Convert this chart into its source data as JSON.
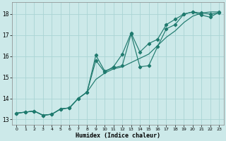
{
  "xlabel": "Humidex (Indice chaleur)",
  "bg_color": "#cce9e9",
  "grid_color": "#aad4d4",
  "line_color": "#1f7a6e",
  "xlim": [
    -0.5,
    23.5
  ],
  "ylim": [
    12.75,
    18.55
  ],
  "yticks": [
    13,
    14,
    15,
    16,
    17,
    18
  ],
  "xticks": [
    0,
    1,
    2,
    3,
    4,
    5,
    6,
    7,
    8,
    9,
    10,
    11,
    12,
    13,
    14,
    15,
    16,
    17,
    18,
    19,
    20,
    21,
    22,
    23
  ],
  "line1_x": [
    0,
    1,
    2,
    3,
    4,
    5,
    6,
    7,
    8,
    9,
    10,
    11,
    12,
    13,
    14,
    15,
    16,
    17,
    18,
    19,
    20,
    21,
    22,
    23
  ],
  "line1_y": [
    13.3,
    13.35,
    13.4,
    13.2,
    13.25,
    13.5,
    13.55,
    14.0,
    14.3,
    14.9,
    15.2,
    15.4,
    15.5,
    15.7,
    15.9,
    16.1,
    16.5,
    16.9,
    17.2,
    17.6,
    17.9,
    18.05,
    18.1,
    18.1
  ],
  "line2_x": [
    0,
    1,
    2,
    3,
    4,
    5,
    6,
    7,
    8,
    9,
    10,
    11,
    12,
    13,
    14,
    15,
    16,
    17,
    18,
    19,
    20,
    21,
    22,
    23
  ],
  "line2_y": [
    13.3,
    13.35,
    13.4,
    13.2,
    13.25,
    13.5,
    13.55,
    14.0,
    14.3,
    15.8,
    15.25,
    15.5,
    16.1,
    17.1,
    16.2,
    16.6,
    16.8,
    17.5,
    17.75,
    18.0,
    18.1,
    17.95,
    17.85,
    18.1
  ],
  "line3_x": [
    0,
    1,
    2,
    3,
    4,
    5,
    6,
    7,
    8,
    9,
    10,
    11,
    12,
    13,
    14,
    15,
    16,
    17,
    18,
    19,
    20,
    21,
    22,
    23
  ],
  "line3_y": [
    13.3,
    13.35,
    13.4,
    13.2,
    13.25,
    13.5,
    13.55,
    14.0,
    14.3,
    16.05,
    15.3,
    15.45,
    15.55,
    17.05,
    15.5,
    15.55,
    16.45,
    17.3,
    17.5,
    18.0,
    18.1,
    18.05,
    18.0,
    18.05
  ]
}
